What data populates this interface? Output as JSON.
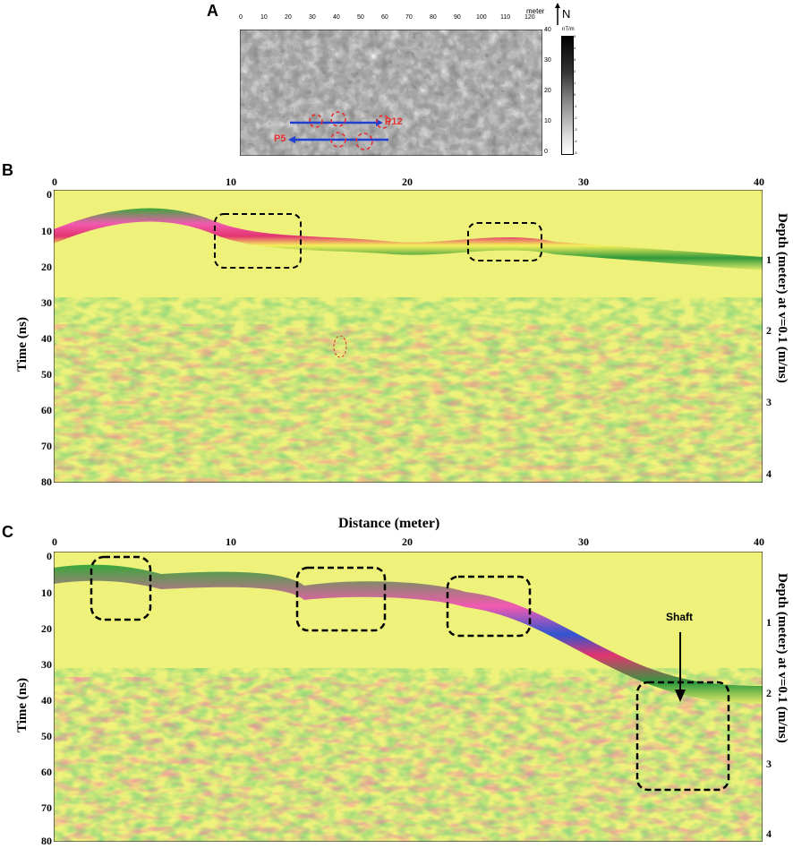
{
  "panel_a": {
    "letter": "A",
    "x_ticks": [
      "0",
      "10",
      "20",
      "30",
      "40",
      "50",
      "60",
      "70",
      "80",
      "90",
      "100",
      "110",
      "120"
    ],
    "x_unit": "meter",
    "y_ticks": [
      "40",
      "30",
      "20",
      "10",
      "0"
    ],
    "north_label": "N",
    "colorbar_unit": "nT/m",
    "colorbar_ticks": [
      "5",
      "4",
      "3",
      "2",
      "1",
      "0",
      "-1",
      "-2",
      "-3",
      "-4",
      "-5"
    ],
    "profile_labels": [
      "P12",
      "P5"
    ],
    "colors": {
      "profile_line": "#1f3fd0",
      "anomaly": "#e53030"
    }
  },
  "panel_b": {
    "letter": "B",
    "x_ticks": [
      "0",
      "10",
      "20",
      "30",
      "40"
    ],
    "time_ticks": [
      "0",
      "10",
      "20",
      "30",
      "40",
      "50",
      "60",
      "70",
      "80"
    ],
    "depth_ticks": [
      "1",
      "2",
      "3",
      "4"
    ],
    "y_left_label": "Time (ns)",
    "y_right_label": "Depth (meter) at v=0.1 (m/ns)"
  },
  "panel_c": {
    "letter": "C",
    "x_title": "Distance (meter)",
    "x_ticks": [
      "0",
      "10",
      "20",
      "30",
      "40"
    ],
    "time_ticks": [
      "0",
      "10",
      "20",
      "30",
      "40",
      "50",
      "60",
      "70",
      "80"
    ],
    "depth_ticks": [
      "1",
      "2",
      "3",
      "4"
    ],
    "y_left_label": "Time (ns)",
    "y_right_label": "Depth (meter) at v=0.1 (m/ns)",
    "annotation": "Shaft"
  }
}
